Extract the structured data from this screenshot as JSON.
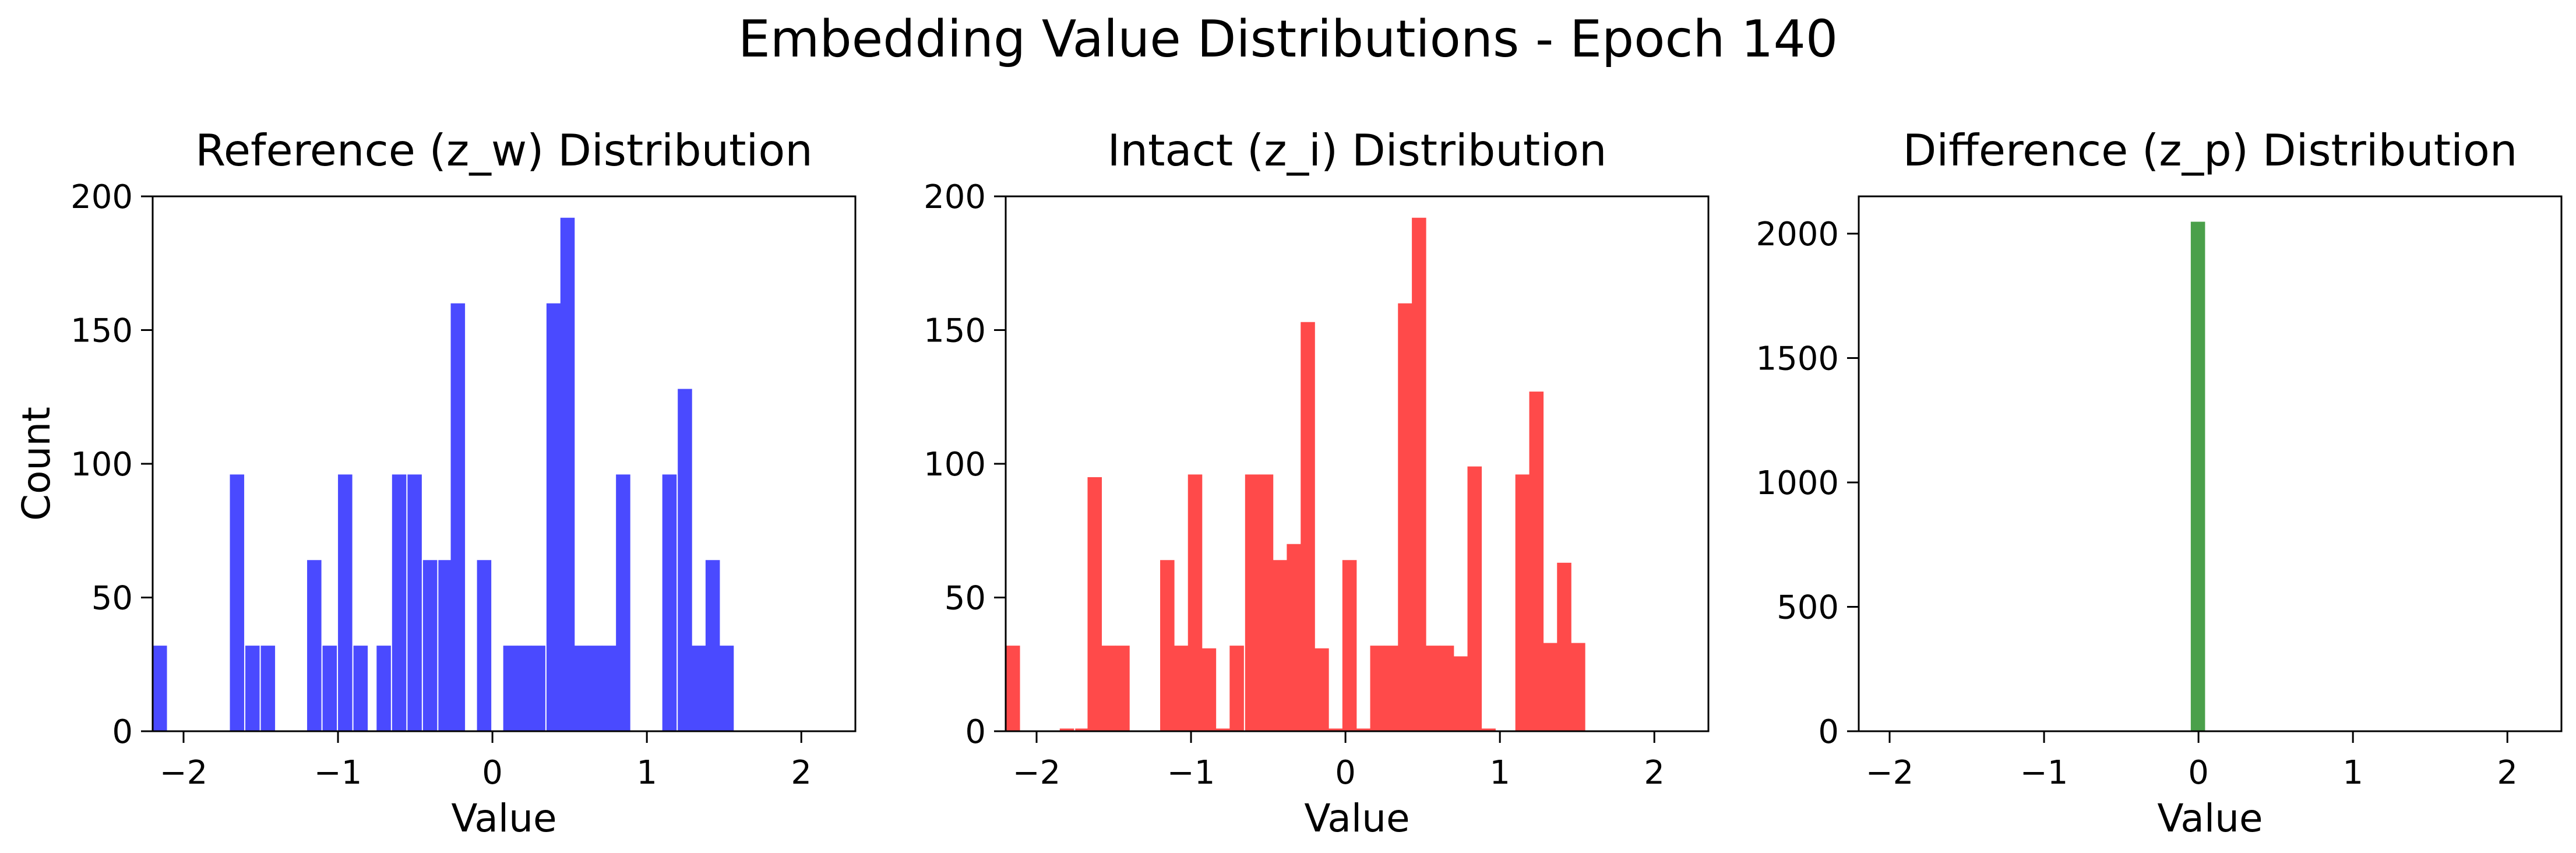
{
  "figure": {
    "suptitle": "Embedding Value Distributions - Epoch 140",
    "background": "#ffffff"
  },
  "chart_data": [
    {
      "type": "bar",
      "title": "Reference (z_w) Distribution",
      "xlabel": "Value",
      "ylabel": "Count",
      "xlim": [
        -2.2,
        2.35
      ],
      "ylim": [
        0,
        200
      ],
      "xticks": [
        -2,
        -1,
        0,
        1,
        2
      ],
      "yticks": [
        0,
        50,
        100,
        150,
        200
      ],
      "xtick_labels": [
        "−2",
        "−1",
        "0",
        "1",
        "2"
      ],
      "ytick_labels": [
        "0",
        "50",
        "100",
        "150",
        "200"
      ],
      "bin_width": 0.0926,
      "color": "#4a4aff",
      "grid": false,
      "bins": [
        {
          "x": -2.2,
          "count": 32
        },
        {
          "x": -1.7,
          "count": 96
        },
        {
          "x": -1.6,
          "count": 32
        },
        {
          "x": -1.5,
          "count": 32
        },
        {
          "x": -1.2,
          "count": 64
        },
        {
          "x": -1.1,
          "count": 32
        },
        {
          "x": -1.0,
          "count": 96
        },
        {
          "x": -0.9,
          "count": 32
        },
        {
          "x": -0.75,
          "count": 32
        },
        {
          "x": -0.65,
          "count": 96
        },
        {
          "x": -0.55,
          "count": 96
        },
        {
          "x": -0.45,
          "count": 64
        },
        {
          "x": -0.35,
          "count": 64
        },
        {
          "x": -0.27,
          "count": 160
        },
        {
          "x": -0.1,
          "count": 64
        },
        {
          "x": 0.07,
          "count": 32
        },
        {
          "x": 0.16,
          "count": 32
        },
        {
          "x": 0.25,
          "count": 32
        },
        {
          "x": 0.35,
          "count": 160
        },
        {
          "x": 0.44,
          "count": 192
        },
        {
          "x": 0.53,
          "count": 32
        },
        {
          "x": 0.62,
          "count": 32
        },
        {
          "x": 0.71,
          "count": 32
        },
        {
          "x": 0.8,
          "count": 96
        },
        {
          "x": 1.1,
          "count": 96
        },
        {
          "x": 1.2,
          "count": 128
        },
        {
          "x": 1.29,
          "count": 32
        },
        {
          "x": 1.38,
          "count": 64
        },
        {
          "x": 1.47,
          "count": 32
        }
      ]
    },
    {
      "type": "bar",
      "title": "Intact (z_i) Distribution",
      "xlabel": "Value",
      "ylabel": "",
      "xlim": [
        -2.2,
        2.35
      ],
      "ylim": [
        0,
        200
      ],
      "xticks": [
        -2,
        -1,
        0,
        1,
        2
      ],
      "yticks": [
        0,
        50,
        100,
        150,
        200
      ],
      "xtick_labels": [
        "−2",
        "−1",
        "0",
        "1",
        "2"
      ],
      "ytick_labels": [
        "0",
        "50",
        "100",
        "150",
        "200"
      ],
      "bin_width": 0.0926,
      "color": "#ff4a4a",
      "grid": false,
      "bins": [
        {
          "x": -2.2,
          "count": 32
        },
        {
          "x": -1.85,
          "count": 1
        },
        {
          "x": -1.75,
          "count": 1
        },
        {
          "x": -1.67,
          "count": 95
        },
        {
          "x": -1.58,
          "count": 32
        },
        {
          "x": -1.49,
          "count": 32
        },
        {
          "x": -1.2,
          "count": 64
        },
        {
          "x": -1.11,
          "count": 32
        },
        {
          "x": -1.02,
          "count": 96
        },
        {
          "x": -0.93,
          "count": 31
        },
        {
          "x": -0.84,
          "count": 1
        },
        {
          "x": -0.75,
          "count": 32
        },
        {
          "x": -0.65,
          "count": 96
        },
        {
          "x": -0.56,
          "count": 96
        },
        {
          "x": -0.47,
          "count": 64
        },
        {
          "x": -0.38,
          "count": 70
        },
        {
          "x": -0.29,
          "count": 153
        },
        {
          "x": -0.2,
          "count": 31
        },
        {
          "x": -0.11,
          "count": 1
        },
        {
          "x": -0.02,
          "count": 64
        },
        {
          "x": 0.07,
          "count": 1
        },
        {
          "x": 0.16,
          "count": 32
        },
        {
          "x": 0.25,
          "count": 32
        },
        {
          "x": 0.34,
          "count": 160
        },
        {
          "x": 0.43,
          "count": 192
        },
        {
          "x": 0.52,
          "count": 32
        },
        {
          "x": 0.61,
          "count": 32
        },
        {
          "x": 0.7,
          "count": 28
        },
        {
          "x": 0.79,
          "count": 99
        },
        {
          "x": 0.88,
          "count": 1
        },
        {
          "x": 1.1,
          "count": 96
        },
        {
          "x": 1.19,
          "count": 127
        },
        {
          "x": 1.28,
          "count": 33
        },
        {
          "x": 1.37,
          "count": 63
        },
        {
          "x": 1.46,
          "count": 33
        }
      ]
    },
    {
      "type": "bar",
      "title": "Difference (z_p) Distribution",
      "xlabel": "Value",
      "ylabel": "",
      "xlim": [
        -2.2,
        2.35
      ],
      "ylim": [
        0,
        2150
      ],
      "xticks": [
        -2,
        -1,
        0,
        1,
        2
      ],
      "yticks": [
        0,
        500,
        1000,
        1500,
        2000
      ],
      "xtick_labels": [
        "−2",
        "−1",
        "0",
        "1",
        "2"
      ],
      "ytick_labels": [
        "0",
        "500",
        "1000",
        "1500",
        "2000"
      ],
      "bin_width": 0.0926,
      "color": "#4aa04a",
      "grid": false,
      "bins": [
        {
          "x": -0.05,
          "count": 2048
        }
      ]
    }
  ]
}
